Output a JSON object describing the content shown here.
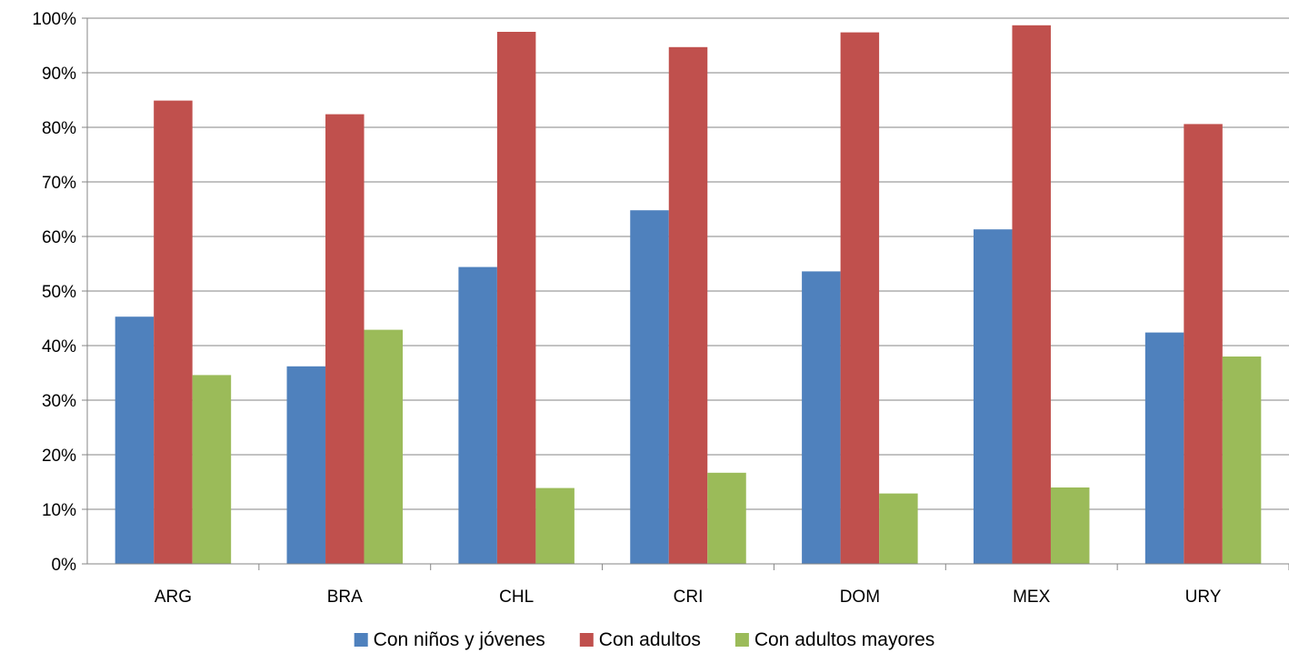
{
  "chart_data": {
    "type": "bar",
    "categories": [
      "ARG",
      "BRA",
      "CHL",
      "CRI",
      "DOM",
      "MEX",
      "URY"
    ],
    "series": [
      {
        "name": "Con niños y jóvenes",
        "color": "#4F81BD",
        "values": [
          45.3,
          36.2,
          54.4,
          64.8,
          53.6,
          61.3,
          42.4
        ]
      },
      {
        "name": "Con adultos",
        "color": "#C0504D",
        "values": [
          84.9,
          82.4,
          97.5,
          94.7,
          97.4,
          98.7,
          80.6
        ]
      },
      {
        "name": "Con adultos mayores",
        "color": "#9BBB59",
        "values": [
          34.6,
          42.9,
          13.9,
          16.7,
          12.9,
          14.0,
          38.0
        ]
      }
    ],
    "y_ticks": [
      "0%",
      "10%",
      "20%",
      "30%",
      "40%",
      "50%",
      "60%",
      "70%",
      "80%",
      "90%",
      "100%"
    ],
    "ylim": [
      0,
      100
    ],
    "y_unit": "%",
    "grid": true,
    "legend_position": "bottom-center"
  }
}
